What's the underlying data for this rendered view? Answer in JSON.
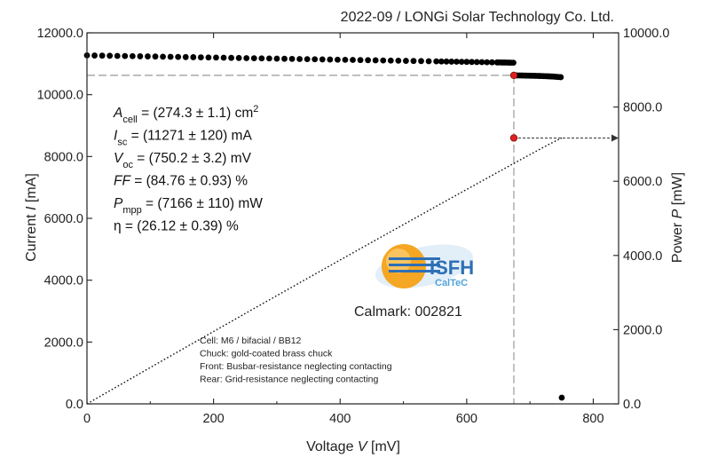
{
  "colors": {
    "axis": "#222222",
    "iv_points": "#000000",
    "mpp_marker": "#e02020",
    "guide_line": "#999999",
    "logo_orange": "#f5a623",
    "logo_blue": "#2e6fb5",
    "logo_lightblue": "#4fa3d8"
  },
  "chart_data": {
    "type": "scatter",
    "title": "2022-09 / LONGi Solar Technology Co. Ltd.",
    "xlabel_main": "Voltage ",
    "xlabel_var": "V",
    "xlabel_unit": " [mV]",
    "ylabel_left_main": "Current ",
    "ylabel_left_var": "I",
    "ylabel_left_unit": " [mA]",
    "ylabel_right_main": "Power ",
    "ylabel_right_var": "P",
    "ylabel_right_unit": " [mW]",
    "xlim": [
      0,
      840
    ],
    "ylim_left": [
      0,
      12000
    ],
    "ylim_right": [
      0,
      10000
    ],
    "x_ticks": [
      0,
      200,
      400,
      600,
      800
    ],
    "x_tick_labels": [
      "0",
      "200",
      "400",
      "600",
      "800"
    ],
    "y_left_ticks": [
      0,
      2000,
      4000,
      6000,
      8000,
      10000,
      12000
    ],
    "y_left_tick_labels": [
      "0.0",
      "2000.0",
      "4000.0",
      "6000.0",
      "8000.0",
      "10000.0",
      "12000.0"
    ],
    "y_right_ticks": [
      0,
      2000,
      4000,
      6000,
      8000,
      10000
    ],
    "y_right_tick_labels": [
      "0.0",
      "2000.0",
      "4000.0",
      "6000.0",
      "8000.0",
      "10000.0"
    ],
    "grid": false,
    "isc": 11271,
    "voc": 750.2,
    "mpp": {
      "v": 674.5,
      "i": 10625,
      "p": 7166
    },
    "series": [
      {
        "kind": "iv-curve-points",
        "x_start": 0,
        "x_end": 750.2,
        "points": 110
      },
      {
        "kind": "power-curve-dotted",
        "y_axis": "right"
      }
    ],
    "parameters": [
      {
        "sym": "A",
        "sub": "cell",
        "rest": " = (274.3 ± 1.1) cm",
        "sup": "2"
      },
      {
        "sym": "I",
        "sub": "sc",
        "rest": " = (11271 ± 120) mA",
        "sup": ""
      },
      {
        "sym": "V",
        "sub": "oc",
        "rest": " = (750.2 ± 3.2) mV",
        "sup": ""
      },
      {
        "sym": "FF",
        "sub": "",
        "rest": " = (84.76 ± 0.93) %",
        "sup": ""
      },
      {
        "sym": "P",
        "sub": "mpp",
        "rest": " = (7166 ± 110) mW",
        "sup": ""
      },
      {
        "sym": "η",
        "sub": "",
        "rest": " = (26.12 ± 0.39) %",
        "sup": "",
        "plain": true
      }
    ],
    "notes": [
      "Cell: M6 / bifacial / BB12",
      "Chuck: gold-coated brass chuck",
      "Front: Busbar-resistance neglecting contacting",
      "Rear: Grid-resistance neglecting contacting"
    ],
    "logo_name": "ISFH",
    "logo_sub": "CalTeC",
    "calmark": "Calmark: 002821"
  }
}
